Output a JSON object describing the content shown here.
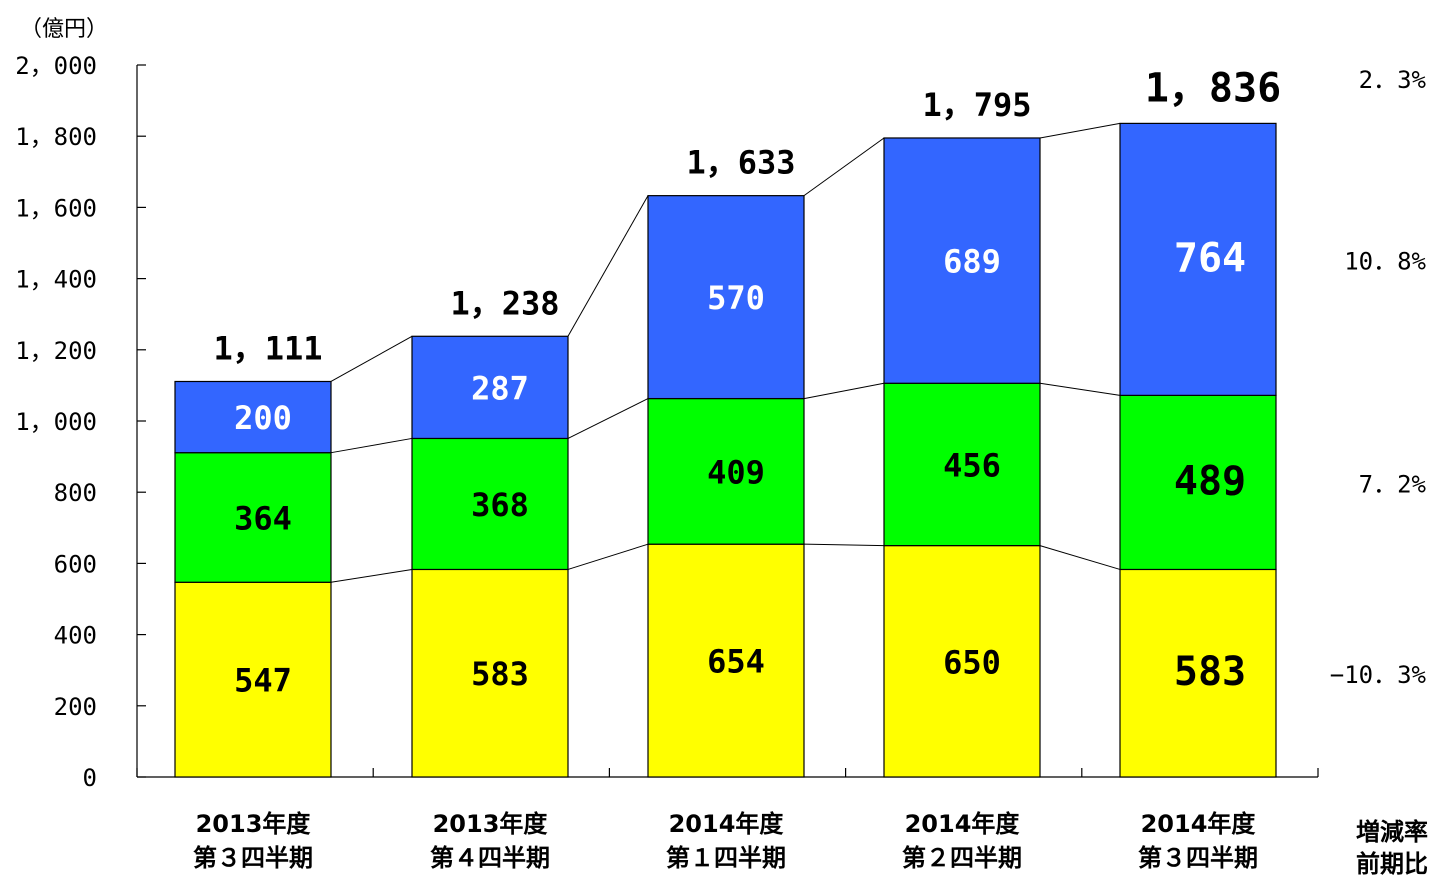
{
  "chart_data": {
    "type": "bar",
    "stacked": true,
    "unit_label": "（億円）",
    "categories": [
      [
        "2013年度",
        "第３四半期"
      ],
      [
        "2013年度",
        "第４四半期"
      ],
      [
        "2014年度",
        "第１四半期"
      ],
      [
        "2014年度",
        "第２四半期"
      ],
      [
        "2014年度",
        "第３四半期"
      ]
    ],
    "series": [
      {
        "values": [
          547,
          583,
          654,
          650,
          583
        ],
        "color": "#ffff00",
        "label_color": "#000000"
      },
      {
        "values": [
          364,
          368,
          409,
          456,
          489
        ],
        "color": "#00ff00",
        "label_color": "#000000"
      },
      {
        "values": [
          200,
          287,
          570,
          689,
          764
        ],
        "color": "#3366ff",
        "label_color": "#ffffff"
      }
    ],
    "value_labels": [
      [
        "547",
        "583",
        "654",
        "650",
        "583"
      ],
      [
        "364",
        "368",
        "409",
        "456",
        "489"
      ],
      [
        "200",
        "287",
        "570",
        "689",
        "764"
      ]
    ],
    "totals": [
      1111,
      1238,
      1633,
      1795,
      1836
    ],
    "total_labels": [
      "1，111",
      "1，238",
      "1，633",
      "1，795",
      "1，836"
    ],
    "y_ticks": [
      0,
      200,
      400,
      600,
      800,
      1000,
      1200,
      1400,
      1600,
      1800,
      2000
    ],
    "y_tick_labels": [
      "0",
      "200",
      "400",
      "600",
      "800",
      "1，000",
      "1，200",
      "1，400",
      "1，600",
      "1，800",
      "2，000"
    ],
    "ylim": [
      0,
      2000
    ],
    "grid": false,
    "connector_lines": true,
    "change_rate": {
      "header": [
        "増減率",
        "前期比"
      ],
      "total": "2．3%",
      "by_series": [
        "−10．3%",
        "7．2%",
        "10．8%"
      ]
    }
  }
}
